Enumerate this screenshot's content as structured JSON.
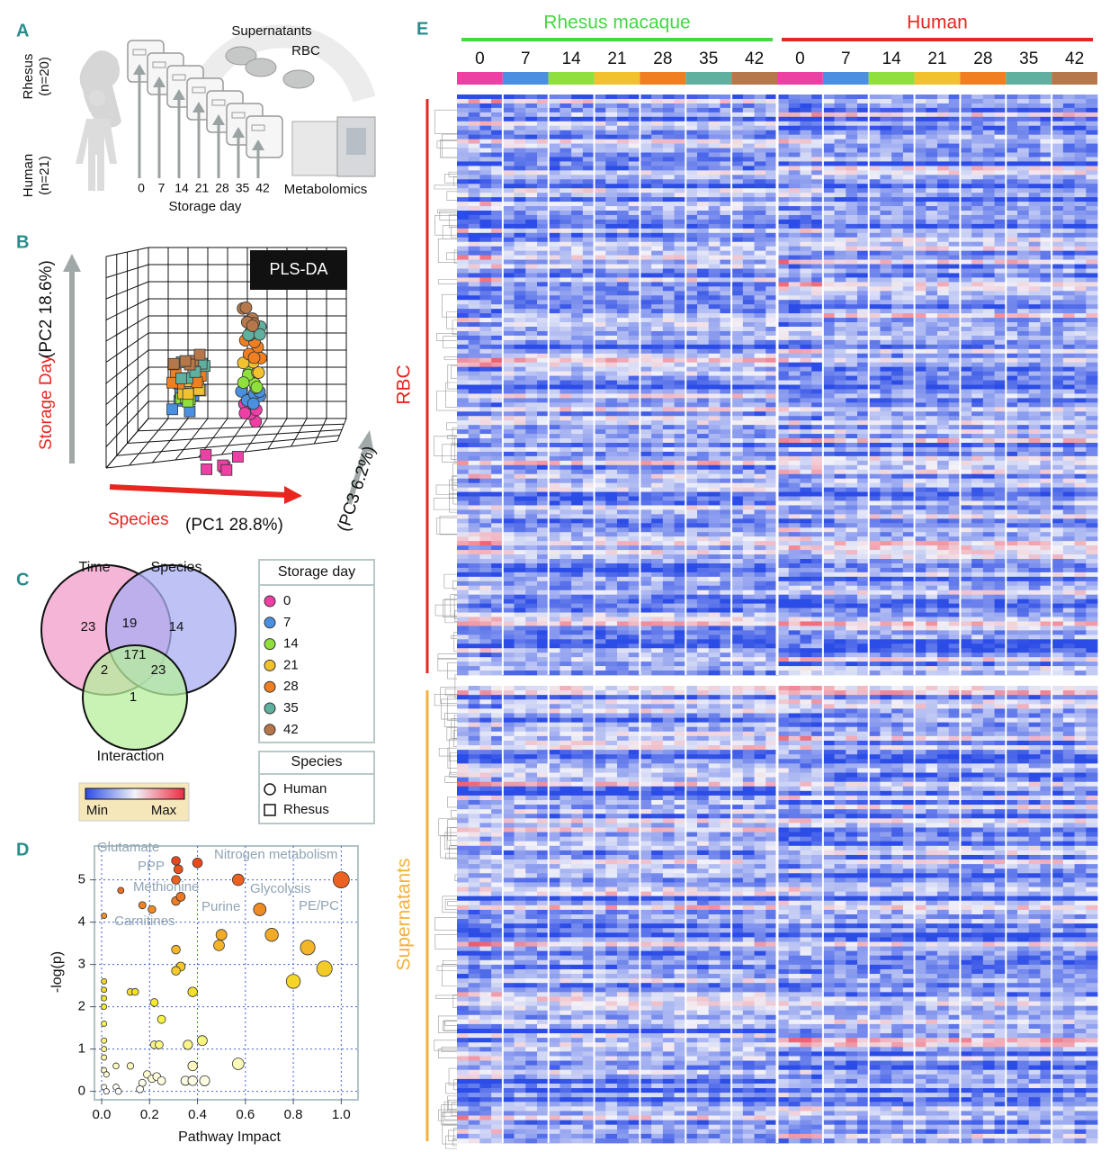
{
  "panel_labels": [
    "A",
    "B",
    "C",
    "D",
    "E"
  ],
  "panel_a": {
    "rhesus": [
      "Rhesus",
      "(n=20)"
    ],
    "human": [
      "Human",
      "(n=21)"
    ],
    "days": [
      0,
      7,
      14,
      21,
      28,
      35,
      42
    ],
    "xlabel": "Storage day",
    "supernatants": "Supernatants",
    "rbc": "RBC",
    "metabolomics": "Metabolomics"
  },
  "panel_b": {
    "title": "PLS-DA",
    "y_name": "Storage Day",
    "y_pc": "(PC2 18.6%)",
    "x_name": "Species",
    "x_pc": "(PC1 28.8%)",
    "z_pc": "(PC3 6.2%)"
  },
  "panel_c": {
    "sets": [
      "Time",
      "Species",
      "Interaction"
    ],
    "colors": [
      "#f29cc8",
      "#a9aef2",
      "#b6ef9c"
    ],
    "counts": {
      "time_only": 23,
      "time_species": 19,
      "species_only": 14,
      "all": 171,
      "time_interaction": 2,
      "species_interaction": 23,
      "interaction_only": 1
    }
  },
  "legend": {
    "storage_title": "Storage day",
    "days": [
      0,
      7,
      14,
      21,
      28,
      35,
      42
    ],
    "day_colors": [
      "#ee3fa4",
      "#4a8fe0",
      "#8fe03c",
      "#f2c12e",
      "#f07f22",
      "#5fb09e",
      "#b6784a"
    ],
    "species_title": "Species",
    "species": [
      "Human",
      "Rhesus"
    ],
    "colorbar": [
      "Min",
      "Max"
    ]
  },
  "chart_data": {
    "type": "scatter",
    "xlabel": "Pathway Impact",
    "ylabel": "-log(p)",
    "x": [
      1.0,
      0.57,
      0.31,
      0.32,
      0.31,
      0.4,
      0.08,
      0.17,
      0.21,
      0.31,
      0.33,
      0.66,
      0.01,
      0.5,
      0.71,
      0.86,
      0.49,
      0.31,
      0.33,
      0.31,
      0.93,
      0.8,
      0.01,
      0.01,
      0.12,
      0.14,
      0.22,
      0.38,
      0.01,
      0.01,
      0.25,
      0.01,
      0.22,
      0.24,
      0.36,
      0.42,
      0.01,
      0.01,
      0.01,
      0.57,
      0.38,
      0.06,
      0.12,
      0.01,
      0.02,
      0.19,
      0.21,
      0.23,
      0.35,
      0.43,
      0.38,
      0.17,
      0.25,
      0.01,
      0.06,
      0.16,
      0.02,
      0.07
    ],
    "values": [
      5.0,
      5.0,
      5.45,
      5.25,
      5.0,
      5.4,
      4.75,
      4.4,
      4.3,
      4.5,
      4.6,
      4.3,
      4.15,
      3.7,
      3.7,
      3.4,
      3.45,
      3.35,
      2.95,
      2.85,
      2.9,
      2.6,
      2.6,
      2.4,
      2.35,
      2.35,
      2.1,
      2.35,
      2.2,
      2.0,
      1.7,
      1.6,
      1.1,
      1.1,
      1.1,
      1.2,
      1.2,
      1.0,
      0.8,
      0.65,
      0.6,
      0.6,
      0.6,
      0.5,
      0.4,
      0.4,
      0.3,
      0.35,
      0.25,
      0.25,
      0.25,
      0.2,
      0.25,
      0.1,
      0.1,
      0.05,
      0.0,
      0.0
    ],
    "colormap": [
      "#ffffff",
      "#f6f02c",
      "#f2a326",
      "#e8321a"
    ],
    "xlim": [
      -0.03,
      1.07
    ],
    "ylim": [
      -0.2,
      5.8
    ],
    "xticks": [
      {
        "value": 0,
        "label": "0.0"
      },
      {
        "value": 0.2,
        "label": "0.2"
      },
      {
        "value": 0.4,
        "label": "0.4"
      },
      {
        "value": 0.6,
        "label": "0.6"
      },
      {
        "value": 0.8,
        "label": "0.8"
      },
      {
        "value": 1,
        "label": "1.0"
      }
    ],
    "yticks": [
      0,
      1,
      2,
      3,
      4,
      5
    ],
    "grid": true,
    "annotations": [
      "Glutamate",
      "Nitrogen metabolism",
      "PPP",
      "Methionine",
      "Glycolysis",
      "PE/PC",
      "Purine",
      "Carnitines"
    ]
  },
  "panel_e": {
    "species": [
      {
        "name": "Rhesus macaque",
        "color": "#45d845"
      },
      {
        "name": "Human",
        "color": "#e8251f"
      }
    ],
    "days": [
      0,
      7,
      14,
      21,
      28,
      35,
      42
    ],
    "blocks": [
      {
        "name": "RBC",
        "color": "#e8251f"
      },
      {
        "name": "Supernatants",
        "color": "#f4b13a"
      }
    ],
    "colormap": [
      "#2b4ce6",
      "#f2f2f8",
      "#ee2a40"
    ]
  }
}
